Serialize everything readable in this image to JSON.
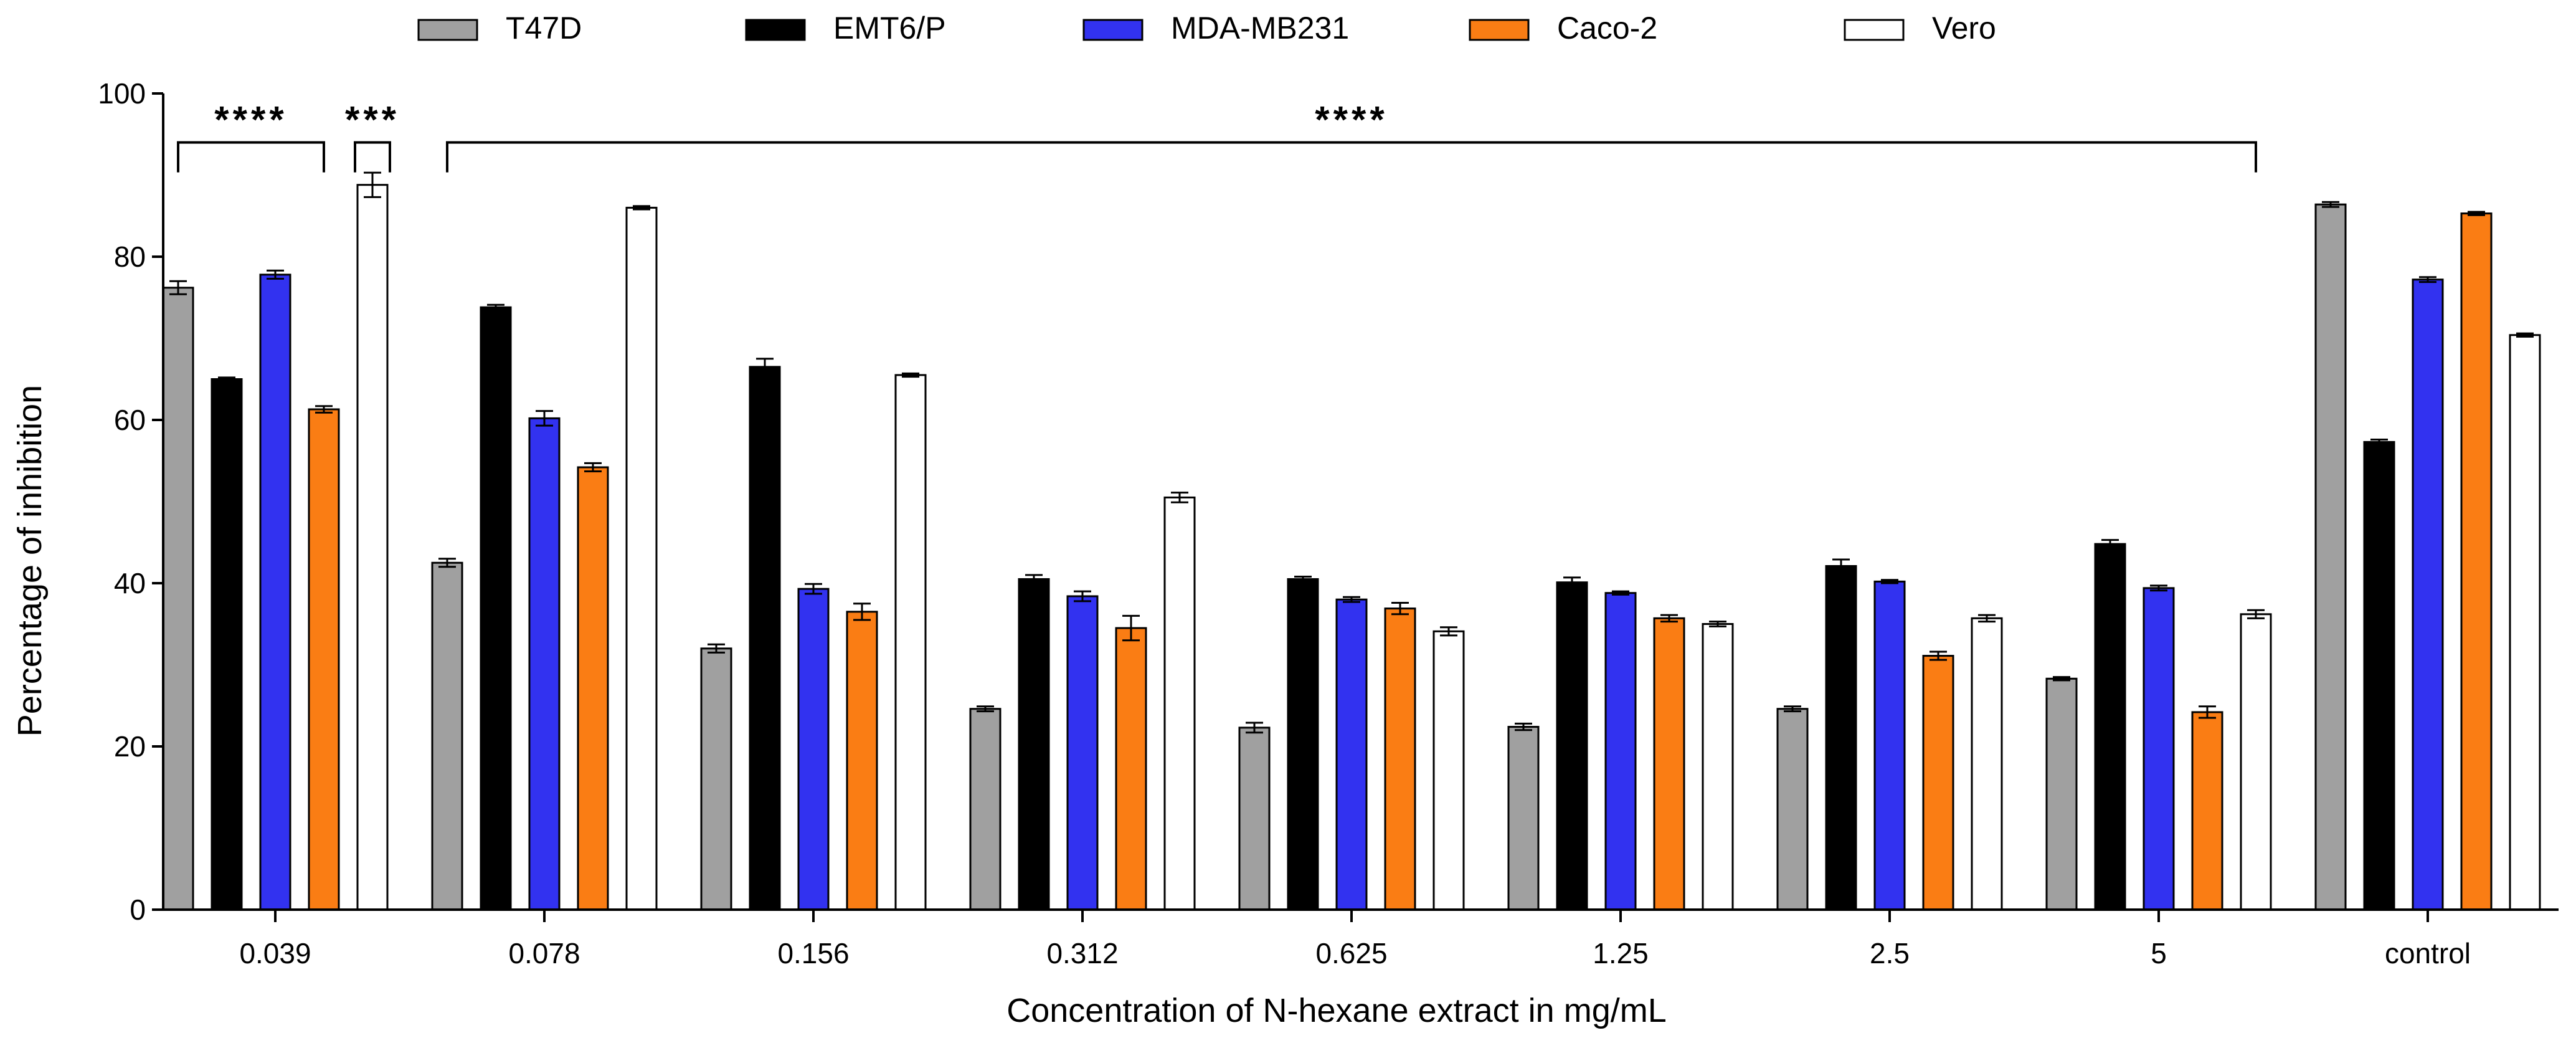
{
  "chart_data": {
    "type": "bar",
    "xlabel": "Concentration of N-hexane extract in mg/mL",
    "ylabel": "Percentage of inhibition",
    "ylim": [
      0,
      100
    ],
    "yticks": [
      0,
      20,
      40,
      60,
      80,
      100
    ],
    "grid": false,
    "legend_position": "top",
    "categories": [
      "0.039",
      "0.078",
      "0.156",
      "0.312",
      "0.625",
      "1.25",
      "2.5",
      "5",
      "control"
    ],
    "series": [
      {
        "name": "T47D",
        "color": "#a0a0a0",
        "values": [
          76.2,
          42.5,
          32.0,
          24.6,
          22.3,
          22.4,
          24.6,
          28.3,
          86.4
        ],
        "errors": [
          0.8,
          0.5,
          0.5,
          0.3,
          0.6,
          0.4,
          0.3,
          0.2,
          0.3
        ]
      },
      {
        "name": "EMT6/P",
        "color": "#000000",
        "values": [
          65.0,
          73.8,
          66.5,
          40.5,
          40.5,
          40.1,
          42.1,
          44.8,
          57.3
        ],
        "errors": [
          0.2,
          0.3,
          1.0,
          0.5,
          0.3,
          0.6,
          0.8,
          0.5,
          0.3
        ]
      },
      {
        "name": "MDA-MB231",
        "color": "#3232f0",
        "values": [
          77.8,
          60.2,
          39.3,
          38.4,
          38.0,
          38.8,
          40.2,
          39.4,
          77.2
        ],
        "errors": [
          0.5,
          0.9,
          0.6,
          0.6,
          0.3,
          0.2,
          0.2,
          0.3,
          0.3
        ]
      },
      {
        "name": "Caco-2",
        "color": "#fa7d14",
        "values": [
          61.3,
          54.2,
          36.5,
          34.5,
          36.9,
          35.7,
          31.1,
          24.2,
          85.3
        ],
        "errors": [
          0.4,
          0.5,
          1.0,
          1.5,
          0.7,
          0.4,
          0.5,
          0.7,
          0.2
        ]
      },
      {
        "name": "Vero",
        "color": "#ffffff",
        "values": [
          88.8,
          86.0,
          65.5,
          50.5,
          34.1,
          35.0,
          35.7,
          36.2,
          70.4
        ],
        "errors": [
          1.5,
          0.2,
          0.2,
          0.6,
          0.5,
          0.3,
          0.4,
          0.5,
          0.2
        ]
      }
    ],
    "annotations": [
      {
        "text": "****",
        "from_category": 0,
        "from_series": 0,
        "to_category": 0,
        "to_series": 3,
        "y": 94
      },
      {
        "text": "***",
        "from_category": 0,
        "from_series": 4,
        "to_category": 0,
        "to_series": 4,
        "y": 94
      },
      {
        "text": "****",
        "from_category": 1,
        "from_series": 0,
        "to_category": 7,
        "to_series": 4,
        "y": 94
      }
    ]
  }
}
